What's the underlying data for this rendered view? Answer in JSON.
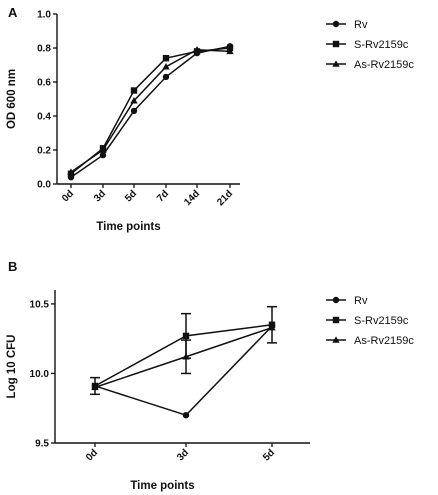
{
  "chart_data": [
    {
      "panel_label": "A",
      "type": "line",
      "categories": [
        "0d",
        "3d",
        "5d",
        "7d",
        "14d",
        "21d"
      ],
      "xlabel": "Time points",
      "ylabel": "OD 600 nm",
      "ylim": [
        0.0,
        1.0
      ],
      "yticks": [
        0.0,
        0.2,
        0.4,
        0.6,
        0.8,
        1.0
      ],
      "ytick_labels": [
        "0.0",
        "0.2",
        "0.4",
        "0.6",
        "0.8",
        "1.0"
      ],
      "legend_position": "top-right",
      "grid": false,
      "series": [
        {
          "name": "Rv",
          "marker": "circle",
          "values": [
            0.04,
            0.17,
            0.43,
            0.63,
            0.77,
            0.81
          ]
        },
        {
          "name": "S-Rv2159c",
          "marker": "square",
          "values": [
            0.06,
            0.21,
            0.55,
            0.74,
            0.78,
            0.8
          ]
        },
        {
          "name": "As-Rv2159c",
          "marker": "triangle",
          "values": [
            0.07,
            0.2,
            0.49,
            0.69,
            0.79,
            0.78
          ]
        }
      ]
    },
    {
      "panel_label": "B",
      "type": "line",
      "categories": [
        "0d",
        "3d",
        "5d"
      ],
      "xlabel": "Time points",
      "ylabel": "Log 10 CFU",
      "ylim": [
        9.5,
        10.6
      ],
      "yticks": [
        9.5,
        10.0,
        10.5
      ],
      "ytick_labels": [
        "9.5",
        "10.0",
        "10.5"
      ],
      "legend_position": "top-right",
      "grid": false,
      "series": [
        {
          "name": "Rv",
          "marker": "circle",
          "values": [
            9.91,
            9.7,
            10.34
          ],
          "error": [
            0,
            0,
            0
          ]
        },
        {
          "name": "S-Rv2159c",
          "marker": "square",
          "values": [
            9.91,
            10.27,
            10.35
          ],
          "error": [
            0.06,
            0.16,
            0.13
          ]
        },
        {
          "name": "As-Rv2159c",
          "marker": "triangle",
          "values": [
            9.9,
            10.12,
            10.33
          ],
          "error": [
            0,
            0.12,
            0
          ]
        }
      ]
    }
  ]
}
